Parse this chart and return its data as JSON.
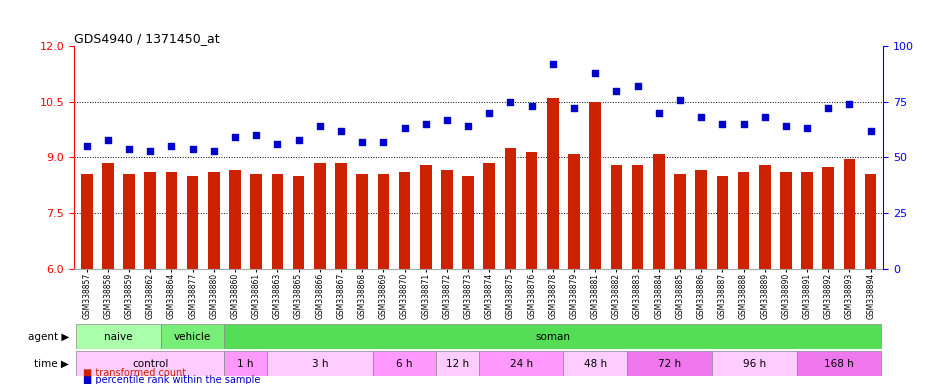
{
  "title": "GDS4940 / 1371450_at",
  "categories": [
    "GSM338857",
    "GSM338858",
    "GSM338859",
    "GSM338862",
    "GSM338864",
    "GSM338877",
    "GSM338880",
    "GSM338860",
    "GSM338861",
    "GSM338863",
    "GSM338865",
    "GSM338866",
    "GSM338867",
    "GSM338868",
    "GSM338869",
    "GSM338870",
    "GSM338871",
    "GSM338872",
    "GSM338873",
    "GSM338874",
    "GSM338875",
    "GSM338876",
    "GSM338878",
    "GSM338879",
    "GSM338881",
    "GSM338882",
    "GSM338883",
    "GSM338884",
    "GSM338885",
    "GSM338886",
    "GSM338887",
    "GSM338888",
    "GSM338889",
    "GSM338890",
    "GSM338891",
    "GSM338892",
    "GSM338893",
    "GSM338894"
  ],
  "bar_values": [
    8.55,
    8.85,
    8.55,
    8.6,
    8.6,
    8.5,
    8.6,
    8.65,
    8.55,
    8.55,
    8.5,
    8.85,
    8.85,
    8.55,
    8.55,
    8.6,
    8.8,
    8.65,
    8.5,
    8.85,
    9.25,
    9.15,
    10.6,
    9.1,
    10.5,
    8.8,
    8.8,
    9.1,
    8.55,
    8.65,
    8.5,
    8.6,
    8.8,
    8.6,
    8.6,
    8.75,
    8.95,
    8.55
  ],
  "scatter_values": [
    55,
    58,
    54,
    53,
    55,
    54,
    53,
    59,
    60,
    56,
    58,
    64,
    62,
    57,
    57,
    63,
    65,
    67,
    64,
    70,
    75,
    73,
    92,
    72,
    88,
    80,
    82,
    70,
    76,
    68,
    65,
    65,
    68,
    64,
    63,
    72,
    74,
    62
  ],
  "ylim_left": [
    6,
    12
  ],
  "ylim_right": [
    0,
    100
  ],
  "yticks_left": [
    6,
    7.5,
    9,
    10.5,
    12
  ],
  "yticks_right": [
    0,
    25,
    50,
    75,
    100
  ],
  "bar_color": "#cc2200",
  "scatter_color": "#0000cc",
  "plot_bg": "#ffffff",
  "agent_groups": [
    {
      "label": "naive",
      "start": 0,
      "end": 4,
      "color": "#aaffaa"
    },
    {
      "label": "vehicle",
      "start": 4,
      "end": 7,
      "color": "#77ee77"
    },
    {
      "label": "soman",
      "start": 7,
      "end": 38,
      "color": "#55dd55"
    }
  ],
  "time_groups": [
    {
      "label": "control",
      "start": 0,
      "end": 7,
      "color": "#ffccff"
    },
    {
      "label": "1 h",
      "start": 7,
      "end": 9,
      "color": "#ff99ff"
    },
    {
      "label": "3 h",
      "start": 9,
      "end": 14,
      "color": "#ffccff"
    },
    {
      "label": "6 h",
      "start": 14,
      "end": 17,
      "color": "#ff99ff"
    },
    {
      "label": "12 h",
      "start": 17,
      "end": 19,
      "color": "#ffccff"
    },
    {
      "label": "24 h",
      "start": 19,
      "end": 23,
      "color": "#ff99ff"
    },
    {
      "label": "48 h",
      "start": 23,
      "end": 26,
      "color": "#ffccff"
    },
    {
      "label": "72 h",
      "start": 26,
      "end": 30,
      "color": "#ee77ee"
    },
    {
      "label": "96 h",
      "start": 30,
      "end": 34,
      "color": "#ffccff"
    },
    {
      "label": "168 h",
      "start": 34,
      "end": 38,
      "color": "#ee77ee"
    }
  ],
  "legend": [
    {
      "label": "transformed count",
      "color": "#cc2200"
    },
    {
      "label": "percentile rank within the sample",
      "color": "#0000cc"
    }
  ]
}
